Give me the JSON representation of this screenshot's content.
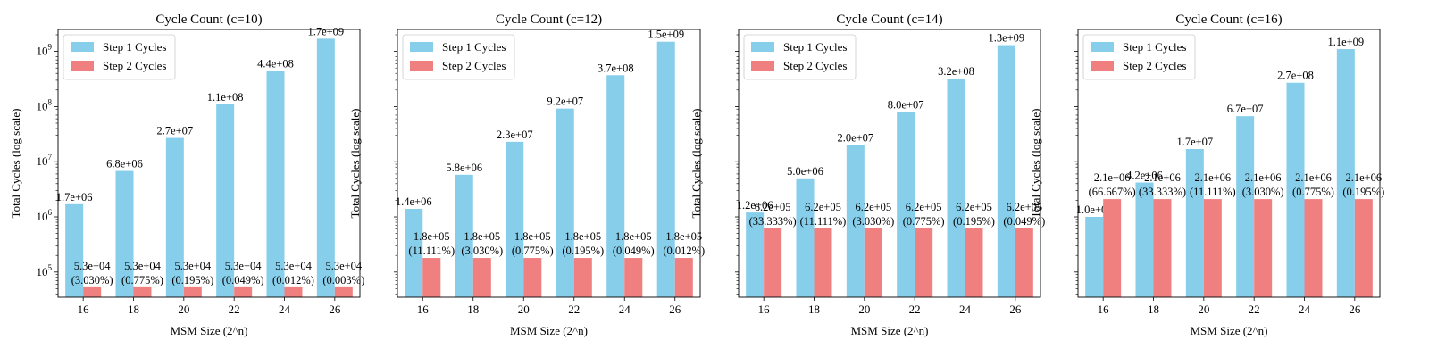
{
  "chart_data": [
    {
      "type": "bar",
      "title": "Cycle Count (c=10)",
      "xlabel": "MSM Size (2^n)",
      "ylabel": "Total Cycles (log scale)",
      "yscale": "log",
      "ylim": [
        35000,
        2500000000
      ],
      "categories": [
        "16",
        "18",
        "20",
        "22",
        "24",
        "26"
      ],
      "legend_position": "top-left",
      "series": [
        {
          "name": "Step 1 Cycles",
          "color": "#87CEEB",
          "values": [
            1700000,
            6800000,
            27000000,
            110000000,
            440000000,
            1700000000
          ],
          "labels": [
            "1.7e+06",
            "6.8e+06",
            "2.7e+07",
            "1.1e+08",
            "4.4e+08",
            "1.7e+09"
          ]
        },
        {
          "name": "Step 2 Cycles",
          "color": "#F08080",
          "values": [
            53000,
            53000,
            53000,
            53000,
            53000,
            53000
          ],
          "labels": [
            "5.3e+04\n(3.030%)",
            "5.3e+04\n(0.775%)",
            "5.3e+04\n(0.195%)",
            "5.3e+04\n(0.049%)",
            "5.3e+04\n(0.012%)",
            "5.3e+04\n(0.003%)"
          ]
        }
      ]
    },
    {
      "type": "bar",
      "title": "Cycle Count (c=12)",
      "xlabel": "MSM Size (2^n)",
      "ylabel": "Total Cycles (log scale)",
      "yscale": "log",
      "ylim": [
        35000,
        2500000000
      ],
      "categories": [
        "16",
        "18",
        "20",
        "22",
        "24",
        "26"
      ],
      "legend_position": "top-left",
      "series": [
        {
          "name": "Step 1 Cycles",
          "color": "#87CEEB",
          "values": [
            1400000,
            5800000,
            23000000,
            92000000,
            370000000,
            1500000000
          ],
          "labels": [
            "1.4e+06",
            "5.8e+06",
            "2.3e+07",
            "9.2e+07",
            "3.7e+08",
            "1.5e+09"
          ]
        },
        {
          "name": "Step 2 Cycles",
          "color": "#F08080",
          "values": [
            180000,
            180000,
            180000,
            180000,
            180000,
            180000
          ],
          "labels": [
            "1.8e+05\n(11.111%)",
            "1.8e+05\n(3.030%)",
            "1.8e+05\n(0.775%)",
            "1.8e+05\n(0.195%)",
            "1.8e+05\n(0.049%)",
            "1.8e+05\n(0.012%)"
          ]
        }
      ]
    },
    {
      "type": "bar",
      "title": "Cycle Count (c=14)",
      "xlabel": "MSM Size (2^n)",
      "ylabel": "Total Cycles (log scale)",
      "yscale": "log",
      "ylim": [
        35000,
        2500000000
      ],
      "categories": [
        "16",
        "18",
        "20",
        "22",
        "24",
        "26"
      ],
      "legend_position": "top-left",
      "series": [
        {
          "name": "Step 1 Cycles",
          "color": "#87CEEB",
          "values": [
            1200000,
            5000000,
            20000000,
            80000000,
            320000000,
            1300000000
          ],
          "labels": [
            "1.2e+06",
            "5.0e+06",
            "2.0e+07",
            "8.0e+07",
            "3.2e+08",
            "1.3e+09"
          ]
        },
        {
          "name": "Step 2 Cycles",
          "color": "#F08080",
          "values": [
            620000,
            620000,
            620000,
            620000,
            620000,
            620000
          ],
          "labels": [
            "6.2e+05\n(33.333%)",
            "6.2e+05\n(11.111%)",
            "6.2e+05\n(3.030%)",
            "6.2e+05\n(0.775%)",
            "6.2e+05\n(0.195%)",
            "6.2e+05\n(0.049%)"
          ]
        }
      ]
    },
    {
      "type": "bar",
      "title": "Cycle Count (c=16)",
      "xlabel": "MSM Size (2^n)",
      "ylabel": "Total Cycles (log scale)",
      "yscale": "log",
      "ylim": [
        35000,
        2500000000
      ],
      "categories": [
        "16",
        "18",
        "20",
        "22",
        "24",
        "26"
      ],
      "legend_position": "top-left",
      "series": [
        {
          "name": "Step 1 Cycles",
          "color": "#87CEEB",
          "values": [
            1000000,
            4200000,
            17000000,
            67000000,
            270000000,
            1100000000
          ],
          "labels": [
            "1.0e+06",
            "4.2e+06",
            "1.7e+07",
            "6.7e+07",
            "2.7e+08",
            "1.1e+09"
          ]
        },
        {
          "name": "Step 2 Cycles",
          "color": "#F08080",
          "values": [
            2100000,
            2100000,
            2100000,
            2100000,
            2100000,
            2100000
          ],
          "labels": [
            "2.1e+06\n(66.667%)",
            "2.1e+06\n(33.333%)",
            "2.1e+06\n(11.111%)",
            "2.1e+06\n(3.030%)",
            "2.1e+06\n(0.775%)",
            "2.1e+06\n(0.195%)"
          ]
        }
      ]
    }
  ],
  "y_tick_labels": [
    {
      "exp": 5,
      "base": "10",
      "sup": "5"
    },
    {
      "exp": 6,
      "base": "10",
      "sup": "6"
    },
    {
      "exp": 7,
      "base": "10",
      "sup": "7"
    },
    {
      "exp": 8,
      "base": "10",
      "sup": "8"
    },
    {
      "exp": 9,
      "base": "10",
      "sup": "9"
    }
  ]
}
